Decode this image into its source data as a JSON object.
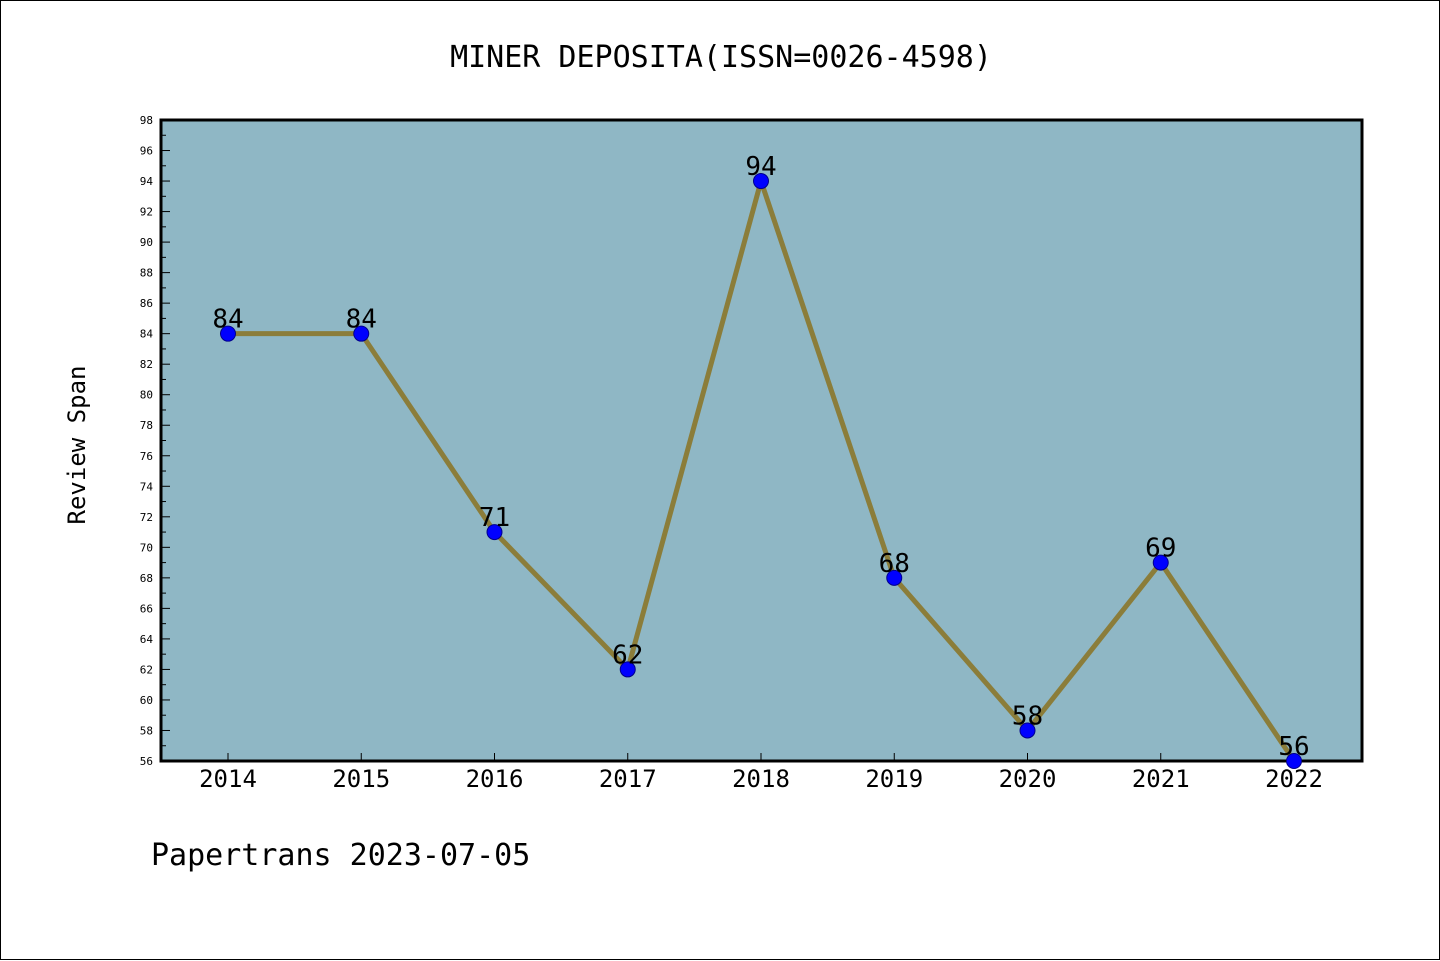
{
  "chart_data": {
    "type": "line",
    "title": "MINER DEPOSITA(ISSN=0026-4598)",
    "xlabel": "",
    "ylabel": "Review Span",
    "categories": [
      "2014",
      "2015",
      "2016",
      "2017",
      "2018",
      "2019",
      "2020",
      "2021",
      "2022"
    ],
    "series": [
      {
        "values": [
          84,
          84,
          71,
          62,
          94,
          68,
          58,
          69,
          56
        ]
      }
    ],
    "ylim": [
      56,
      98
    ],
    "ytick_step": 2,
    "grid": false,
    "legend": "none",
    "colors": {
      "plot_background": "#8fb7c5",
      "line": "#8b7d3a",
      "marker": "#0000ff"
    }
  },
  "footer": {
    "text": "Papertrans 2023-07-05"
  }
}
